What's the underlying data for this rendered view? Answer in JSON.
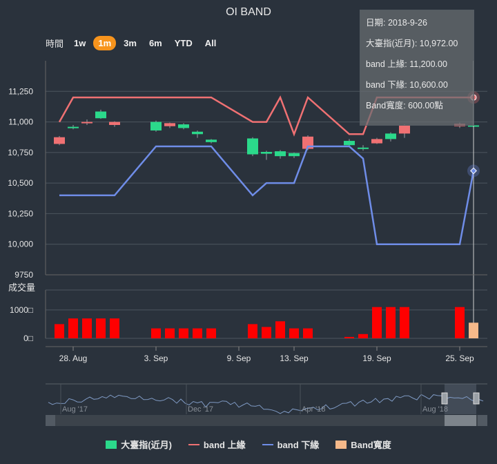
{
  "title": "OI BAND",
  "range_selector": {
    "label": "時間",
    "buttons": [
      "1w",
      "1m",
      "3m",
      "6m",
      "YTD",
      "All"
    ],
    "selected": "1m"
  },
  "tooltip": {
    "date": "日期: 2018-9-26",
    "index": "大臺指(近月): 10,972.00",
    "upper": "band 上緣: 11,200.00",
    "lower": "band 下緣: 10,600.00",
    "width": "Band寬度: 600.00點"
  },
  "volume_axis_title": "成交量",
  "legend": [
    {
      "name": "大臺指(近月)",
      "color": "#2bd98b",
      "kind": "box"
    },
    {
      "name": "band 上緣",
      "color": "#f07173",
      "kind": "line"
    },
    {
      "name": "band 下緣",
      "color": "#6f8de8",
      "kind": "line"
    },
    {
      "name": "Band寬度",
      "color": "#f6b98a",
      "kind": "box"
    }
  ],
  "navigator_labels": [
    "Aug '17",
    "Dec '17",
    "Apr '18",
    "Aug '18"
  ],
  "colors": {
    "up": "#2bd98b",
    "down": "#f07173",
    "upper": "#f07173",
    "lower": "#6f8de8",
    "volume": "#ff0000",
    "width_bar": "#f6b98a"
  },
  "chart_data": {
    "type": "candlestick",
    "title": "OI BAND",
    "ylim": [
      9750,
      11500
    ],
    "yticks": [
      "11,250",
      "11,000",
      "10,750",
      "10,500",
      "10,250",
      "10,000",
      "9750"
    ],
    "ytick_values": [
      11250,
      11000,
      10750,
      10500,
      10250,
      10000,
      9750
    ],
    "xticks": [
      "28. Aug",
      "3. Sep",
      "9. Sep",
      "13. Sep",
      "19. Sep",
      "25. Sep"
    ],
    "xtick_dates": [
      "2018-08-28",
      "2018-09-03",
      "2018-09-09",
      "2018-09-13",
      "2018-09-19",
      "2018-09-25"
    ],
    "dates": [
      "2018-08-27",
      "2018-08-28",
      "2018-08-29",
      "2018-08-30",
      "2018-08-31",
      "2018-09-03",
      "2018-09-04",
      "2018-09-05",
      "2018-09-06",
      "2018-09-07",
      "2018-09-10",
      "2018-09-11",
      "2018-09-12",
      "2018-09-13",
      "2018-09-14",
      "2018-09-17",
      "2018-09-18",
      "2018-09-19",
      "2018-09-20",
      "2018-09-21",
      "2018-09-25",
      "2018-09-26"
    ],
    "ohlc": [
      [
        10875,
        10885,
        10810,
        10820
      ],
      [
        10950,
        10975,
        10940,
        10960
      ],
      [
        11000,
        11020,
        10975,
        10990
      ],
      [
        11030,
        11100,
        11025,
        11085
      ],
      [
        11000,
        11005,
        10960,
        10975
      ],
      [
        10930,
        11010,
        10920,
        11000
      ],
      [
        10990,
        10995,
        10950,
        10965
      ],
      [
        10950,
        10990,
        10940,
        10980
      ],
      [
        10900,
        10930,
        10870,
        10920
      ],
      [
        10835,
        10860,
        10825,
        10855
      ],
      [
        10735,
        10875,
        10720,
        10865
      ],
      [
        10740,
        10765,
        10690,
        10755
      ],
      [
        10720,
        10770,
        10700,
        10760
      ],
      [
        10720,
        10750,
        10705,
        10745
      ],
      [
        10880,
        10890,
        10770,
        10780
      ],
      [
        10810,
        10860,
        10800,
        10845
      ],
      [
        10780,
        10810,
        10765,
        10790
      ],
      [
        10860,
        10870,
        10820,
        10825
      ],
      [
        10860,
        10915,
        10840,
        10905
      ],
      [
        10970,
        10980,
        10870,
        10905
      ],
      [
        10985,
        10995,
        10950,
        10965
      ],
      [
        10972,
        10990,
        10960,
        10972
      ]
    ],
    "series": [
      {
        "name": "band 上緣",
        "values": [
          11000,
          11200,
          11200,
          11200,
          11200,
          11200,
          11200,
          11200,
          11200,
          11200,
          11000,
          11000,
          11200,
          10900,
          11200,
          10900,
          10900,
          11200,
          11200,
          11200,
          11200,
          11200
        ]
      },
      {
        "name": "band 下緣",
        "values": [
          10400,
          10400,
          10400,
          10400,
          10400,
          10800,
          10800,
          10800,
          10800,
          10800,
          10400,
          10500,
          10500,
          10500,
          10800,
          10800,
          10700,
          10000,
          10000,
          10000,
          10000,
          10600
        ]
      }
    ],
    "volume": {
      "yticks": [
        "1000□",
        "0□"
      ],
      "ytick_values": [
        1000,
        0
      ],
      "ylim": [
        0,
        1700
      ],
      "values": [
        500,
        700,
        700,
        700,
        700,
        350,
        350,
        350,
        350,
        350,
        500,
        400,
        600,
        350,
        350,
        50,
        150,
        1100,
        1100,
        1100,
        1100,
        550
      ],
      "highlight_index": 21
    },
    "hover_index": 21
  }
}
